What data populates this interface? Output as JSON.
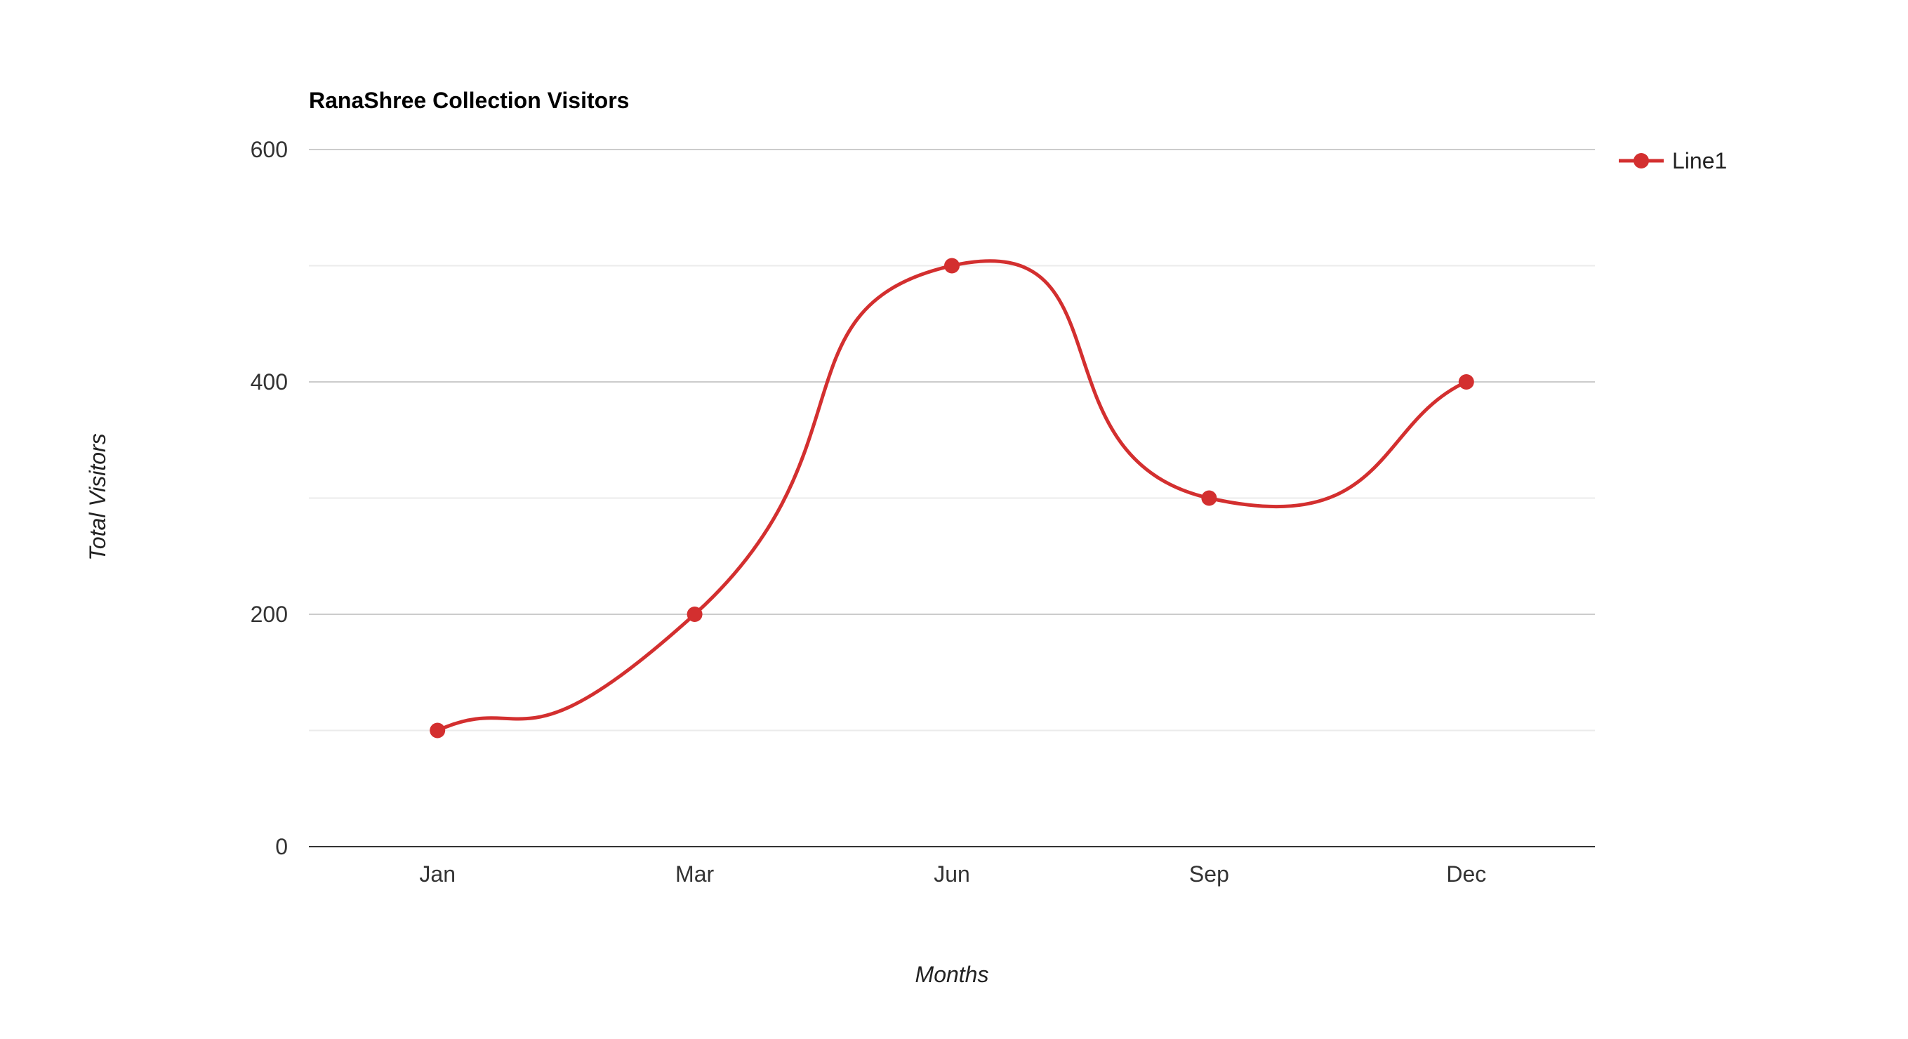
{
  "chart_data": {
    "type": "line",
    "title": "RanaShree Collection Visitors",
    "xlabel": "Months",
    "ylabel": "Total Visitors",
    "categories": [
      "Jan",
      "Mar",
      "Jun",
      "Sep",
      "Dec"
    ],
    "series": [
      {
        "name": "Line1",
        "values": [
          100,
          200,
          500,
          300,
          400
        ],
        "color": "#d32f2f"
      }
    ],
    "ylim": [
      0,
      600
    ],
    "y_ticks": [
      "0",
      "200",
      "400",
      "600"
    ],
    "grid": true,
    "smooth": true,
    "legend_position": "top-right"
  }
}
